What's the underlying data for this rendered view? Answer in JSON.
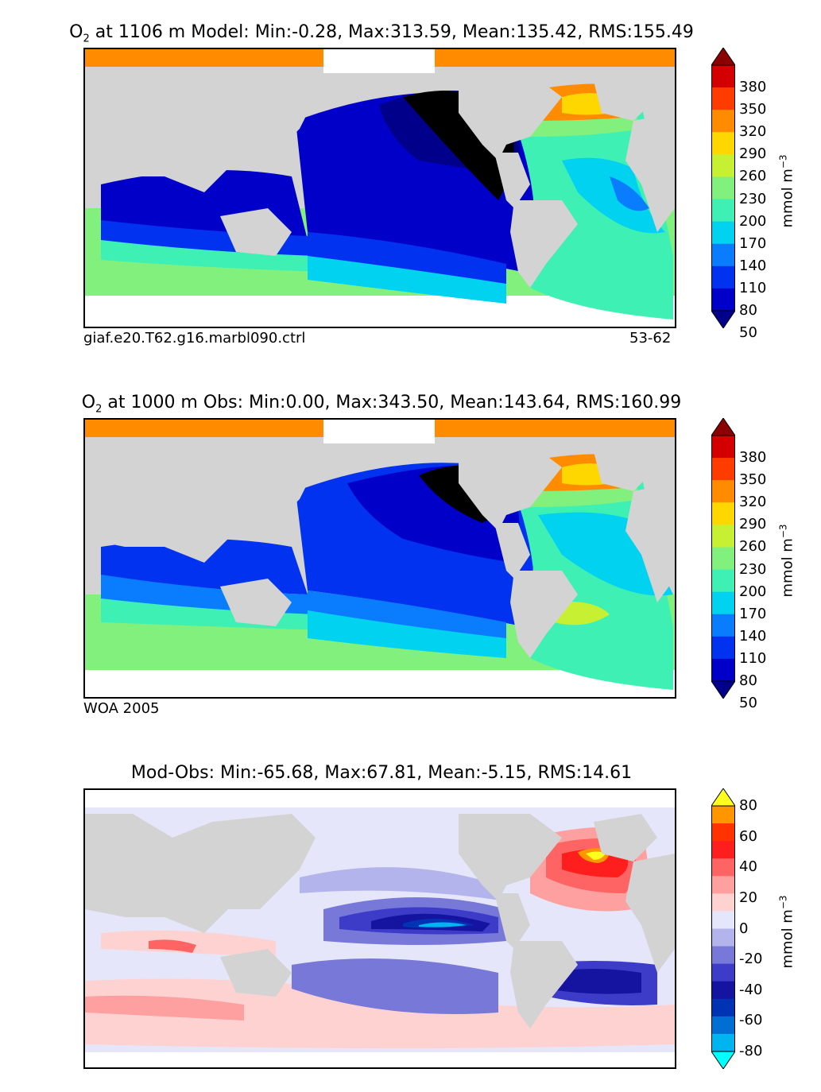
{
  "panels": [
    {
      "title_species": "O",
      "title_sub": "2",
      "title_rest": " at 1106 m Model: Min:-0.28, Max:313.59, Mean:135.42, RMS:155.49",
      "caption_left": "giaf.e20.T62.g16.marbl090.ctrl",
      "caption_right": "53-62",
      "colorbar": {
        "ticks": [
          "380",
          "350",
          "320",
          "290",
          "260",
          "230",
          "200",
          "170",
          "140",
          "110",
          "80",
          "50"
        ],
        "unit": "mmol m",
        "unit_exp": "−3",
        "colors": [
          "#8b0000",
          "#d40000",
          "#ff3c00",
          "#ff8c00",
          "#ffd700",
          "#c8f032",
          "#82f07d",
          "#3ef0b4",
          "#00d2f0",
          "#0a7dff",
          "#0032f0",
          "#0000c8",
          "#00008b"
        ]
      }
    },
    {
      "title_species": "O",
      "title_sub": "2",
      "title_rest": " at 1000 m Obs: Min:0.00, Max:343.50, Mean:143.64, RMS:160.99",
      "caption_left": "WOA 2005",
      "caption_right": "",
      "colorbar": {
        "ticks": [
          "380",
          "350",
          "320",
          "290",
          "260",
          "230",
          "200",
          "170",
          "140",
          "110",
          "80",
          "50"
        ],
        "unit": "mmol m",
        "unit_exp": "−3",
        "colors": [
          "#8b0000",
          "#d40000",
          "#ff3c00",
          "#ff8c00",
          "#ffd700",
          "#c8f032",
          "#82f07d",
          "#3ef0b4",
          "#00d2f0",
          "#0a7dff",
          "#0032f0",
          "#0000c8",
          "#00008b"
        ]
      }
    },
    {
      "title_species": "",
      "title_sub": "",
      "title_rest": "Mod-Obs: Min:-65.68, Max:67.81, Mean:-5.15, RMS:14.61",
      "caption_left": "",
      "caption_right": "",
      "colorbar": {
        "ticks": [
          "80",
          "60",
          "40",
          "20",
          "0",
          "-20",
          "-40",
          "-60",
          "-80"
        ],
        "unit": "mmol m",
        "unit_exp": "−3",
        "colors": [
          "#ffff1e",
          "#ff9600",
          "#ff3200",
          "#ff1e1e",
          "#ff6464",
          "#ffa0a0",
          "#ffd2d2",
          "#e6e6fa",
          "#b4b4ec",
          "#7878d8",
          "#3c3cc8",
          "#1414a0",
          "#0032b4",
          "#006ed2",
          "#00b4f0",
          "#00ffff"
        ]
      }
    }
  ],
  "colors": {
    "land": "#d3d3d3",
    "ice_orange": "#ff8c00",
    "missing": "#ffffff"
  }
}
